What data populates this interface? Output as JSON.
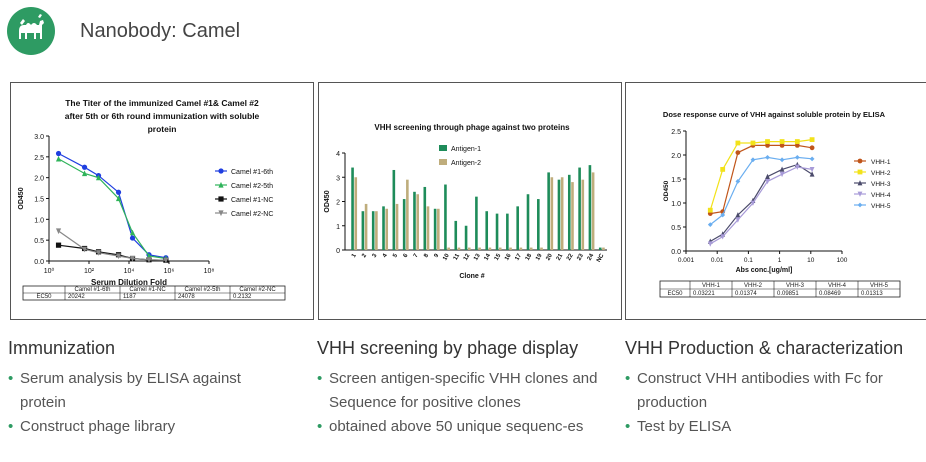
{
  "header": {
    "title": "Nanobody: Camel",
    "logo_icon": "camel-icon",
    "logo_color": "#2e9b63"
  },
  "sections": [
    {
      "title": "Immunization",
      "bullets": [
        "Serum analysis by ELISA against protein",
        "Construct phage library"
      ]
    },
    {
      "title": "VHH screening  by phage display",
      "bullets": [
        "Screen antigen-specific VHH clones and Sequence for positive clones",
        "obtained above 50 unique sequenc-es"
      ]
    },
    {
      "title": "VHH Production & characterization",
      "bullets": [
        "Construct VHH antibodies with Fc for production",
        "Test by ELISA"
      ]
    }
  ],
  "chart_data": [
    {
      "type": "scatter",
      "title": "The Titer of the immunized Camel #1& Camel #2 after 5th or 6th round immunization with soluble protein",
      "xlabel": "Serum Dilution Fold",
      "ylabel": "OD450",
      "xscale": "log",
      "xlim": [
        1,
        100000000
      ],
      "ylim": [
        0,
        3
      ],
      "x_tick_labels": [
        "10⁰",
        "10²",
        "10⁴",
        "10⁶",
        "10⁸"
      ],
      "y_tick_labels": [
        "0.0",
        "0.5",
        "1.0",
        "1.5",
        "2.0",
        "2.5",
        "3.0"
      ],
      "legend_position": "right",
      "series": [
        {
          "name": "Camel #1-6th",
          "color": "#1f3ee0",
          "marker": "circle",
          "x": [
            3,
            60,
            300,
            3000,
            15000,
            100000,
            700000
          ],
          "y": [
            2.58,
            2.25,
            2.05,
            1.65,
            0.55,
            0.15,
            0.08
          ]
        },
        {
          "name": "Camel #2-5th",
          "color": "#2fb35a",
          "marker": "triangle",
          "x": [
            3,
            60,
            300,
            3000,
            15000,
            100000,
            700000
          ],
          "y": [
            2.45,
            2.1,
            2.0,
            1.5,
            0.68,
            0.12,
            0.06
          ]
        },
        {
          "name": "Camel #1-NC",
          "color": "#111111",
          "marker": "square",
          "x": [
            3,
            60,
            300,
            3000,
            15000,
            100000,
            700000
          ],
          "y": [
            0.38,
            0.3,
            0.22,
            0.15,
            0.06,
            0.03,
            0.02
          ]
        },
        {
          "name": "Camel #2-NC",
          "color": "#888888",
          "marker": "triangle-down",
          "x": [
            3,
            60,
            300,
            3000,
            15000,
            100000,
            700000
          ],
          "y": [
            0.72,
            0.28,
            0.2,
            0.12,
            0.06,
            0.03,
            0.02
          ]
        }
      ],
      "table": {
        "headers": [
          "",
          "Camel #1-6th",
          "Camel #1-NC",
          "Camel #2-5th",
          "Camel #2-NC"
        ],
        "rows": [
          [
            "EC50",
            "20242",
            "1187",
            "24078",
            "0.2132"
          ]
        ]
      }
    },
    {
      "type": "bar",
      "title": "VHH screening through phage against two proteins",
      "xlabel": "Clone #",
      "ylabel": "OD450",
      "ylim": [
        0,
        4
      ],
      "y_tick_labels": [
        "0",
        "1",
        "2",
        "3",
        "4"
      ],
      "legend_position": "top-left",
      "categories": [
        "1",
        "2",
        "3",
        "4",
        "5",
        "6",
        "7",
        "8",
        "9",
        "10",
        "11",
        "12",
        "13",
        "14",
        "15",
        "16",
        "17",
        "18",
        "19",
        "20",
        "21",
        "22",
        "23",
        "24",
        "NC"
      ],
      "series": [
        {
          "name": "Antigen-1",
          "color": "#1e8c5a",
          "values": [
            3.4,
            1.6,
            1.6,
            1.8,
            3.3,
            2.1,
            2.4,
            2.6,
            1.7,
            2.7,
            1.2,
            1.0,
            2.2,
            1.6,
            1.5,
            1.5,
            1.8,
            2.3,
            2.1,
            3.2,
            2.9,
            3.1,
            3.4,
            3.5,
            0.1
          ]
        },
        {
          "name": "Antigen-2",
          "color": "#bfad7c",
          "values": [
            3.0,
            1.9,
            1.6,
            1.7,
            1.9,
            2.9,
            2.3,
            1.8,
            1.7,
            0.1,
            0.1,
            0.1,
            0.1,
            0.1,
            0.1,
            0.1,
            0.1,
            0.1,
            0.1,
            3.0,
            3.0,
            2.8,
            2.9,
            3.2,
            0.1
          ]
        }
      ]
    },
    {
      "type": "line",
      "title": "Dose response curve of  VHH  against soluble protein by ELISA",
      "xlabel": "Abs conc.[ug/ml]",
      "ylabel": "OD450",
      "xscale": "log",
      "xlim": [
        0.001,
        100
      ],
      "ylim": [
        0,
        2.5
      ],
      "x_tick_labels": [
        "0.001",
        "0.01",
        "0.1",
        "1",
        "10",
        "100"
      ],
      "y_tick_labels": [
        "0.0",
        "0.5",
        "1.0",
        "1.5",
        "2.0",
        "2.5"
      ],
      "legend_position": "right",
      "series": [
        {
          "name": "VHH-1",
          "color": "#c0551a",
          "marker": "circle",
          "x": [
            0.006,
            0.015,
            0.046,
            0.14,
            0.41,
            1.2,
            3.7,
            11
          ],
          "y": [
            0.78,
            0.82,
            2.05,
            2.2,
            2.2,
            2.2,
            2.2,
            2.15
          ]
        },
        {
          "name": "VHH-2",
          "color": "#f2e21a",
          "marker": "square",
          "x": [
            0.006,
            0.015,
            0.046,
            0.14,
            0.41,
            1.2,
            3.7,
            11
          ],
          "y": [
            0.85,
            1.7,
            2.25,
            2.25,
            2.28,
            2.28,
            2.28,
            2.32
          ]
        },
        {
          "name": "VHH-3",
          "color": "#4b4b6b",
          "marker": "triangle",
          "x": [
            0.006,
            0.015,
            0.046,
            0.14,
            0.41,
            1.2,
            3.7,
            11
          ],
          "y": [
            0.2,
            0.35,
            0.75,
            1.05,
            1.55,
            1.7,
            1.8,
            1.6
          ]
        },
        {
          "name": "VHH-4",
          "color": "#a89bd8",
          "marker": "triangle-down",
          "x": [
            0.006,
            0.015,
            0.046,
            0.14,
            0.41,
            1.2,
            3.7,
            11
          ],
          "y": [
            0.15,
            0.3,
            0.65,
            1.0,
            1.45,
            1.6,
            1.75,
            1.7
          ]
        },
        {
          "name": "VHH-5",
          "color": "#6aaef0",
          "marker": "diamond",
          "x": [
            0.006,
            0.015,
            0.046,
            0.14,
            0.41,
            1.2,
            3.7,
            11
          ],
          "y": [
            0.55,
            0.75,
            1.45,
            1.9,
            1.95,
            1.9,
            1.95,
            1.92
          ]
        }
      ],
      "table": {
        "headers": [
          "",
          "VHH-1",
          "VHH-2",
          "VHH-3",
          "VHH-4",
          "VHH-5"
        ],
        "rows": [
          [
            "EC50",
            "0.03221",
            "0.01374",
            "0.09851",
            "0.08469",
            "0.01313"
          ]
        ]
      }
    }
  ]
}
